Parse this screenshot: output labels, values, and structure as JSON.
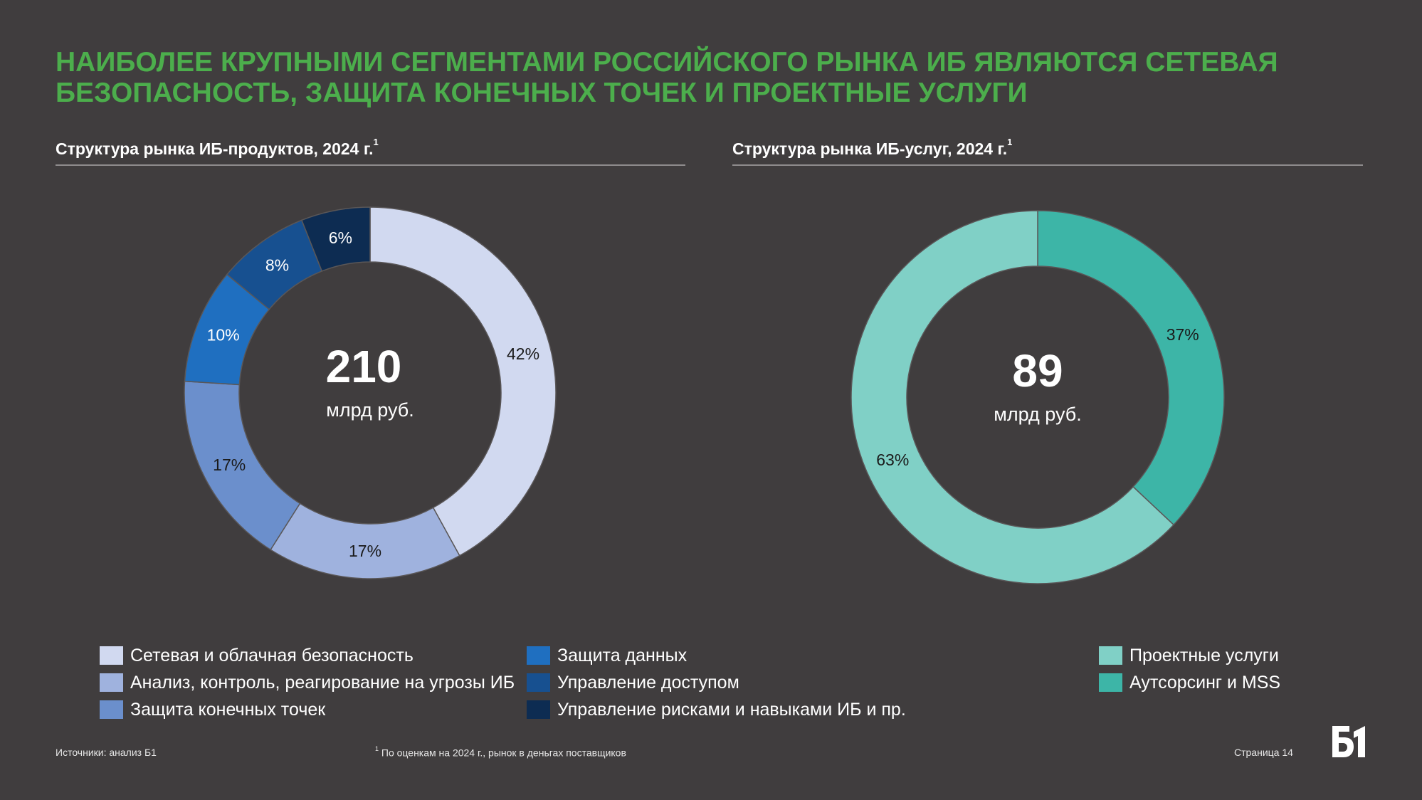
{
  "headline": {
    "line1": "НАИБОЛЕЕ КРУПНЫМИ СЕГМЕНТАМИ РОССИЙСКОГО РЫНКА ИБ ЯВЛЯЮТСЯ СЕТЕВАЯ",
    "line2": "БЕЗОПАСНОСТЬ, ЗАЩИТА КОНЕЧНЫХ ТОЧЕК И ПРОЕКТНЫЕ УСЛУГИ"
  },
  "footer": {
    "sources": "Источники: анализ Б1",
    "footnote_mark": "1",
    "footnote": "По оценкам на 2024 г., рынок в деньгах поставщиков",
    "page": "Страница 14"
  },
  "logo_text": "Б1",
  "chart_data": [
    {
      "type": "pie",
      "title": "Структура рынка ИБ-продуктов, 2024 г.",
      "title_sup": "1",
      "center_value": "210",
      "center_unit": "млрд руб.",
      "categories": [
        "Сетевая и облачная безопасность",
        "Анализ, контроль, реагирование на угрозы ИБ",
        "Защита конечных точек",
        "Защита данных",
        "Управление доступом",
        "Управление рисками и навыками ИБ и пр."
      ],
      "values": [
        42,
        17,
        17,
        10,
        8,
        6
      ],
      "labels": [
        "42%",
        "17%",
        "17%",
        "10%",
        "8%",
        "6%"
      ],
      "colors": [
        "#d1d9f0",
        "#9fb2de",
        "#6b8fcc",
        "#1f6fc0",
        "#175090",
        "#0d2c52"
      ],
      "label_colors": [
        "#1a1a1a",
        "#1a1a1a",
        "#1a1a1a",
        "#ffffff",
        "#ffffff",
        "#ffffff"
      ]
    },
    {
      "type": "pie",
      "title": "Структура рынка ИБ-услуг, 2024 г.",
      "title_sup": "1",
      "center_value": "89",
      "center_unit": "млрд руб.",
      "categories": [
        "Аутсорсинг и MSS",
        "Проектные услуги"
      ],
      "values": [
        37,
        63
      ],
      "labels": [
        "37%",
        "63%"
      ],
      "colors": [
        "#3db5a7",
        "#80d0c6"
      ],
      "label_colors": [
        "#1a1a1a",
        "#1a1a1a"
      ],
      "legend_order": [
        1,
        0
      ]
    }
  ]
}
